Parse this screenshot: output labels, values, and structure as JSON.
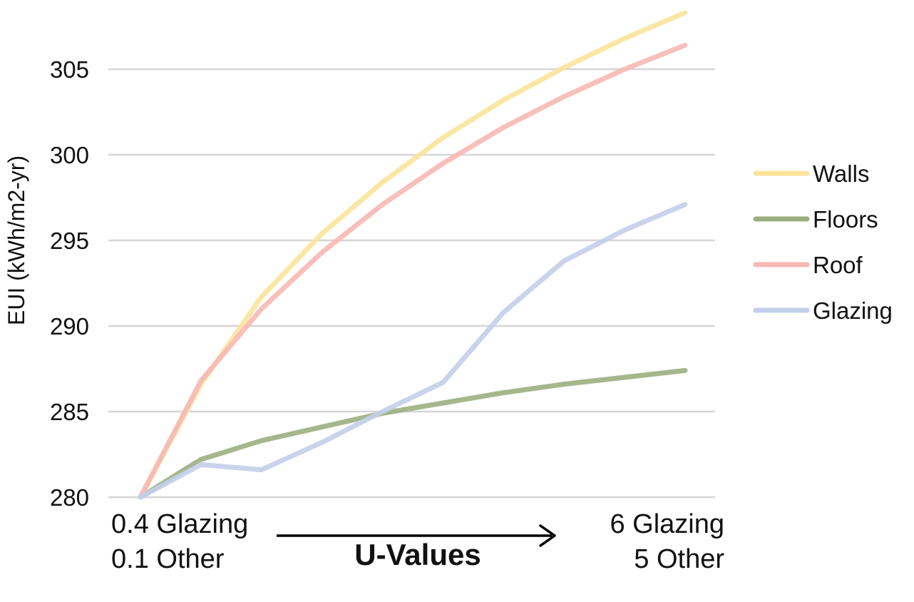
{
  "chart_data": {
    "type": "line",
    "title": "",
    "xlabel": "U-Values",
    "x_start_label": [
      "0.4 Glazing",
      "0.1 Other"
    ],
    "x_end_label": [
      "6 Glazing",
      "5 Other"
    ],
    "ylabel": "EUI (kWh/m2-yr)",
    "ylim": [
      280,
      308.5
    ],
    "yticks": [
      280,
      285,
      290,
      295,
      300,
      305
    ],
    "grid": true,
    "legend_position": "right",
    "x": [
      1,
      2,
      3,
      4,
      5,
      6,
      7,
      8,
      9,
      10
    ],
    "series": [
      {
        "name": "Walls",
        "color": "#FBE49A",
        "values": [
          280,
          286.6,
          291.7,
          295.4,
          298.4,
          301.0,
          303.2,
          305.1,
          306.8,
          308.3
        ]
      },
      {
        "name": "Floors",
        "color": "#9BAF7E",
        "values": [
          280,
          282.2,
          283.3,
          284.1,
          284.9,
          285.5,
          286.1,
          286.6,
          287.0,
          287.4
        ]
      },
      {
        "name": "Roof",
        "color": "#F7B8B4",
        "values": [
          280,
          286.8,
          291.0,
          294.3,
          297.1,
          299.5,
          301.6,
          303.4,
          305.0,
          306.4
        ]
      },
      {
        "name": "Glazing",
        "color": "#C3CFEA",
        "values": [
          280,
          281.9,
          281.6,
          283.2,
          285.0,
          286.7,
          290.8,
          293.8,
          295.6,
          297.1
        ]
      }
    ]
  }
}
